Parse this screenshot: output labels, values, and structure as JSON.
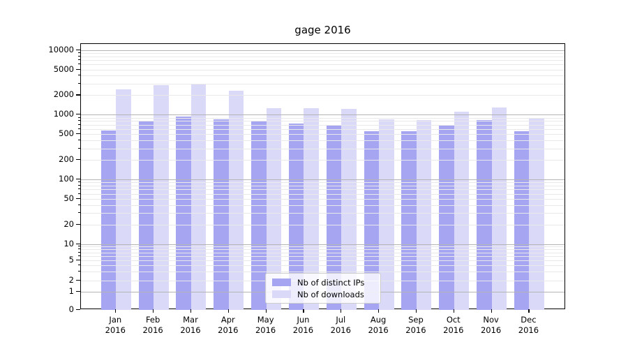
{
  "chart_data": {
    "type": "bar",
    "title": "gage 2016",
    "xlabel": "",
    "ylabel": "",
    "yscale": "log (symlog, 0 at baseline)",
    "ylim": [
      0,
      13000
    ],
    "grid": "horizontal major and minor gridlines, drawn above bars",
    "legend_position": "lower center",
    "y_ticks": [
      10000,
      5000,
      2000,
      1000,
      500,
      200,
      100,
      50,
      20,
      10,
      5,
      2,
      1,
      0
    ],
    "categories": [
      {
        "month": "Jan",
        "year": "2016"
      },
      {
        "month": "Feb",
        "year": "2016"
      },
      {
        "month": "Mar",
        "year": "2016"
      },
      {
        "month": "Apr",
        "year": "2016"
      },
      {
        "month": "May",
        "year": "2016"
      },
      {
        "month": "Jun",
        "year": "2016"
      },
      {
        "month": "Jul",
        "year": "2016"
      },
      {
        "month": "Aug",
        "year": "2016"
      },
      {
        "month": "Sep",
        "year": "2016"
      },
      {
        "month": "Oct",
        "year": "2016"
      },
      {
        "month": "Nov",
        "year": "2016"
      },
      {
        "month": "Dec",
        "year": "2016"
      }
    ],
    "series": [
      {
        "name": "Nb of distinct IPs",
        "color": "#a5a5f2",
        "values": [
          570,
          810,
          940,
          850,
          800,
          730,
          680,
          550,
          560,
          680,
          830,
          560
        ]
      },
      {
        "name": "Nb of downloads",
        "color": "#dadaf8",
        "values": [
          2450,
          2870,
          2950,
          2370,
          1250,
          1250,
          1230,
          850,
          820,
          1100,
          1280,
          870
        ]
      }
    ]
  }
}
